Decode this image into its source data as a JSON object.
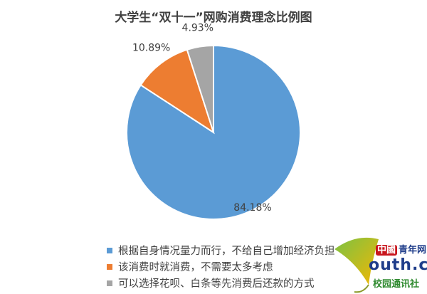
{
  "chart_data": {
    "type": "pie",
    "title": "大学生“双十一”网购消费理念比例图",
    "legend_position": "bottom-left",
    "start_angle": "12 o'clock, clockwise",
    "slices": [
      {
        "name": "根据自身情况量力而行，不给自己增加经济负担",
        "value": 84.18,
        "label": "84.18%",
        "color": "#5B9BD5"
      },
      {
        "name": "该消费时就消费，不需要太多考虑",
        "value": 10.89,
        "label": "10.89%",
        "color": "#ED7D31"
      },
      {
        "name": "可以选择花呗、白条等先消费后还款的方式",
        "value": 4.93,
        "label": "4.93%",
        "color": "#A5A5A5"
      }
    ]
  },
  "watermark": {
    "brand": "中國青年网",
    "domain": "outh.cn",
    "sub": "校园通讯社",
    "cn_mark": "中國",
    "cn_name": "青年网"
  }
}
